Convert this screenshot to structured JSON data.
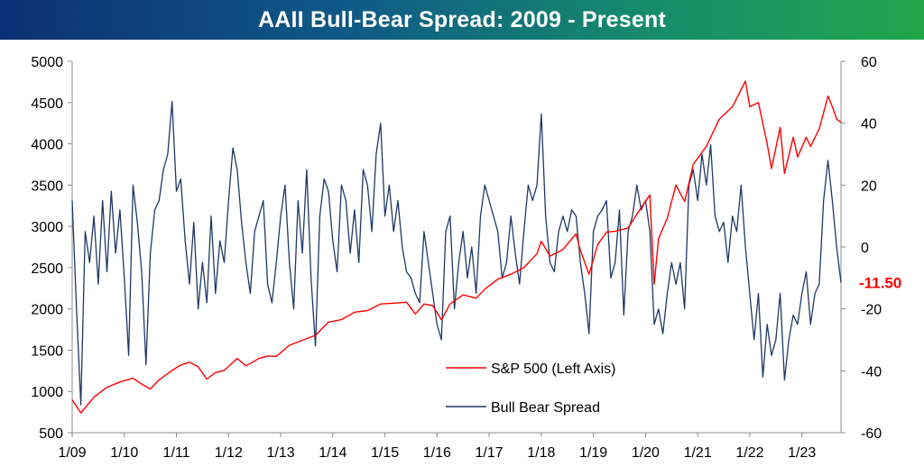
{
  "title": "AAII Bull-Bear Spread: 2009 - Present",
  "chart_data": {
    "type": "line",
    "title": "AAII Bull-Bear Spread: 2009 - Present",
    "x_start": "2009-01",
    "x_end": "2023-10",
    "x_tick_labels": [
      "1/09",
      "1/10",
      "1/11",
      "1/12",
      "1/13",
      "1/14",
      "1/15",
      "1/16",
      "1/17",
      "1/18",
      "1/19",
      "1/20",
      "1/21",
      "1/22",
      "1/23"
    ],
    "left_axis": {
      "min": 500,
      "max": 5000,
      "step": 500,
      "ticks": [
        "500",
        "1000",
        "1500",
        "2000",
        "2500",
        "3000",
        "3500",
        "4000",
        "4500",
        "5000"
      ]
    },
    "right_axis": {
      "min": -60,
      "max": 60,
      "step": 20,
      "ticks": [
        "-60",
        "-40",
        "-20",
        "0",
        "20",
        "40",
        "60"
      ]
    },
    "grid": false,
    "legend_position": "bottom-center",
    "last_value_label": "-11.50",
    "last_value_color": "#ff0000",
    "series": [
      {
        "name": "S&P 500 (Left Axis)",
        "axis": "left",
        "color": "#ff0000",
        "points": [
          [
            "2009-01",
            900
          ],
          [
            "2009-03",
            740
          ],
          [
            "2009-06",
            930
          ],
          [
            "2009-09",
            1050
          ],
          [
            "2009-12",
            1115
          ],
          [
            "2010-03",
            1160
          ],
          [
            "2010-05",
            1090
          ],
          [
            "2010-07",
            1030
          ],
          [
            "2010-09",
            1140
          ],
          [
            "2010-12",
            1255
          ],
          [
            "2011-02",
            1320
          ],
          [
            "2011-04",
            1355
          ],
          [
            "2011-06",
            1300
          ],
          [
            "2011-08",
            1150
          ],
          [
            "2011-10",
            1230
          ],
          [
            "2011-12",
            1255
          ],
          [
            "2012-03",
            1400
          ],
          [
            "2012-05",
            1310
          ],
          [
            "2012-08",
            1400
          ],
          [
            "2012-10",
            1430
          ],
          [
            "2012-12",
            1425
          ],
          [
            "2013-03",
            1560
          ],
          [
            "2013-06",
            1620
          ],
          [
            "2013-09",
            1680
          ],
          [
            "2013-12",
            1840
          ],
          [
            "2014-03",
            1870
          ],
          [
            "2014-06",
            1960
          ],
          [
            "2014-09",
            1980
          ],
          [
            "2014-12",
            2060
          ],
          [
            "2015-03",
            2070
          ],
          [
            "2015-06",
            2080
          ],
          [
            "2015-08",
            1940
          ],
          [
            "2015-10",
            2060
          ],
          [
            "2015-12",
            2040
          ],
          [
            "2016-02",
            1870
          ],
          [
            "2016-04",
            2060
          ],
          [
            "2016-07",
            2170
          ],
          [
            "2016-10",
            2130
          ],
          [
            "2016-12",
            2240
          ],
          [
            "2017-03",
            2360
          ],
          [
            "2017-06",
            2420
          ],
          [
            "2017-09",
            2500
          ],
          [
            "2017-12",
            2670
          ],
          [
            "2018-01",
            2820
          ],
          [
            "2018-03",
            2640
          ],
          [
            "2018-06",
            2720
          ],
          [
            "2018-09",
            2910
          ],
          [
            "2018-10",
            2710
          ],
          [
            "2018-12",
            2420
          ],
          [
            "2019-02",
            2780
          ],
          [
            "2019-04",
            2930
          ],
          [
            "2019-06",
            2940
          ],
          [
            "2019-09",
            2980
          ],
          [
            "2019-12",
            3230
          ],
          [
            "2020-02",
            3380
          ],
          [
            "2020-03",
            2300
          ],
          [
            "2020-04",
            2850
          ],
          [
            "2020-06",
            3100
          ],
          [
            "2020-08",
            3500
          ],
          [
            "2020-10",
            3300
          ],
          [
            "2020-12",
            3750
          ],
          [
            "2021-03",
            3970
          ],
          [
            "2021-06",
            4300
          ],
          [
            "2021-09",
            4450
          ],
          [
            "2021-12",
            4760
          ],
          [
            "2022-01",
            4450
          ],
          [
            "2022-03",
            4500
          ],
          [
            "2022-05",
            4000
          ],
          [
            "2022-06",
            3700
          ],
          [
            "2022-08",
            4200
          ],
          [
            "2022-09",
            3640
          ],
          [
            "2022-11",
            4080
          ],
          [
            "2022-12",
            3840
          ],
          [
            "2023-02",
            4080
          ],
          [
            "2023-03",
            3970
          ],
          [
            "2023-05",
            4180
          ],
          [
            "2023-07",
            4580
          ],
          [
            "2023-08",
            4450
          ],
          [
            "2023-09",
            4300
          ],
          [
            "2023-10",
            4260
          ]
        ]
      },
      {
        "name": "Bull Bear Spread",
        "axis": "right",
        "color": "#1f3864",
        "points": [
          [
            "2009-01",
            15
          ],
          [
            "2009-02",
            -20
          ],
          [
            "2009-03",
            -51
          ],
          [
            "2009-04",
            5
          ],
          [
            "2009-05",
            -5
          ],
          [
            "2009-06",
            10
          ],
          [
            "2009-07",
            -12
          ],
          [
            "2009-08",
            15
          ],
          [
            "2009-09",
            -8
          ],
          [
            "2009-10",
            18
          ],
          [
            "2009-11",
            -2
          ],
          [
            "2009-12",
            12
          ],
          [
            "2010-01",
            -10
          ],
          [
            "2010-02",
            -35
          ],
          [
            "2010-03",
            20
          ],
          [
            "2010-04",
            8
          ],
          [
            "2010-05",
            -8
          ],
          [
            "2010-06",
            -38
          ],
          [
            "2010-07",
            -2
          ],
          [
            "2010-08",
            12
          ],
          [
            "2010-09",
            15
          ],
          [
            "2010-10",
            25
          ],
          [
            "2010-11",
            30
          ],
          [
            "2010-12",
            47
          ],
          [
            "2011-01",
            18
          ],
          [
            "2011-02",
            22
          ],
          [
            "2011-03",
            2
          ],
          [
            "2011-04",
            -12
          ],
          [
            "2011-05",
            8
          ],
          [
            "2011-06",
            -20
          ],
          [
            "2011-07",
            -5
          ],
          [
            "2011-08",
            -18
          ],
          [
            "2011-09",
            10
          ],
          [
            "2011-10",
            -15
          ],
          [
            "2011-11",
            2
          ],
          [
            "2011-12",
            -5
          ],
          [
            "2012-01",
            15
          ],
          [
            "2012-02",
            32
          ],
          [
            "2012-03",
            25
          ],
          [
            "2012-04",
            8
          ],
          [
            "2012-05",
            -5
          ],
          [
            "2012-06",
            -15
          ],
          [
            "2012-07",
            5
          ],
          [
            "2012-08",
            10
          ],
          [
            "2012-09",
            15
          ],
          [
            "2012-10",
            -12
          ],
          [
            "2012-11",
            -18
          ],
          [
            "2012-12",
            -5
          ],
          [
            "2013-01",
            10
          ],
          [
            "2013-02",
            20
          ],
          [
            "2013-03",
            -5
          ],
          [
            "2013-04",
            -20
          ],
          [
            "2013-05",
            15
          ],
          [
            "2013-06",
            -2
          ],
          [
            "2013-07",
            25
          ],
          [
            "2013-08",
            -10
          ],
          [
            "2013-09",
            -32
          ],
          [
            "2013-10",
            10
          ],
          [
            "2013-11",
            22
          ],
          [
            "2013-12",
            18
          ],
          [
            "2014-01",
            2
          ],
          [
            "2014-02",
            -8
          ],
          [
            "2014-03",
            20
          ],
          [
            "2014-04",
            15
          ],
          [
            "2014-05",
            -2
          ],
          [
            "2014-06",
            12
          ],
          [
            "2014-07",
            -5
          ],
          [
            "2014-08",
            25
          ],
          [
            "2014-09",
            20
          ],
          [
            "2014-10",
            5
          ],
          [
            "2014-11",
            30
          ],
          [
            "2014-12",
            40
          ],
          [
            "2015-01",
            10
          ],
          [
            "2015-02",
            20
          ],
          [
            "2015-03",
            5
          ],
          [
            "2015-04",
            15
          ],
          [
            "2015-05",
            0
          ],
          [
            "2015-06",
            -8
          ],
          [
            "2015-07",
            -10
          ],
          [
            "2015-08",
            -15
          ],
          [
            "2015-09",
            -18
          ],
          [
            "2015-10",
            5
          ],
          [
            "2015-11",
            -5
          ],
          [
            "2015-12",
            -15
          ],
          [
            "2016-01",
            -25
          ],
          [
            "2016-02",
            -30
          ],
          [
            "2016-03",
            5
          ],
          [
            "2016-04",
            10
          ],
          [
            "2016-05",
            -20
          ],
          [
            "2016-06",
            -5
          ],
          [
            "2016-07",
            5
          ],
          [
            "2016-08",
            -10
          ],
          [
            "2016-09",
            0
          ],
          [
            "2016-10",
            -15
          ],
          [
            "2016-11",
            10
          ],
          [
            "2016-12",
            20
          ],
          [
            "2017-01",
            15
          ],
          [
            "2017-02",
            10
          ],
          [
            "2017-03",
            5
          ],
          [
            "2017-04",
            -10
          ],
          [
            "2017-05",
            -5
          ],
          [
            "2017-06",
            10
          ],
          [
            "2017-07",
            -2
          ],
          [
            "2017-08",
            -12
          ],
          [
            "2017-09",
            5
          ],
          [
            "2017-10",
            20
          ],
          [
            "2017-11",
            15
          ],
          [
            "2017-12",
            20
          ],
          [
            "2018-01",
            43
          ],
          [
            "2018-02",
            10
          ],
          [
            "2018-03",
            -5
          ],
          [
            "2018-04",
            -8
          ],
          [
            "2018-05",
            5
          ],
          [
            "2018-06",
            10
          ],
          [
            "2018-07",
            5
          ],
          [
            "2018-08",
            12
          ],
          [
            "2018-09",
            10
          ],
          [
            "2018-10",
            -5
          ],
          [
            "2018-11",
            -15
          ],
          [
            "2018-12",
            -28
          ],
          [
            "2019-01",
            5
          ],
          [
            "2019-02",
            10
          ],
          [
            "2019-03",
            12
          ],
          [
            "2019-04",
            15
          ],
          [
            "2019-05",
            -10
          ],
          [
            "2019-06",
            -5
          ],
          [
            "2019-07",
            12
          ],
          [
            "2019-08",
            -22
          ],
          [
            "2019-09",
            5
          ],
          [
            "2019-10",
            10
          ],
          [
            "2019-11",
            20
          ],
          [
            "2019-12",
            12
          ],
          [
            "2020-01",
            15
          ],
          [
            "2020-02",
            5
          ],
          [
            "2020-03",
            -25
          ],
          [
            "2020-04",
            -20
          ],
          [
            "2020-05",
            -28
          ],
          [
            "2020-06",
            -15
          ],
          [
            "2020-07",
            -5
          ],
          [
            "2020-08",
            -12
          ],
          [
            "2020-09",
            -5
          ],
          [
            "2020-10",
            -20
          ],
          [
            "2020-11",
            20
          ],
          [
            "2020-12",
            25
          ],
          [
            "2021-01",
            15
          ],
          [
            "2021-02",
            30
          ],
          [
            "2021-03",
            20
          ],
          [
            "2021-04",
            33
          ],
          [
            "2021-05",
            10
          ],
          [
            "2021-06",
            5
          ],
          [
            "2021-07",
            8
          ],
          [
            "2021-08",
            -5
          ],
          [
            "2021-09",
            10
          ],
          [
            "2021-10",
            5
          ],
          [
            "2021-11",
            20
          ],
          [
            "2021-12",
            0
          ],
          [
            "2022-01",
            -15
          ],
          [
            "2022-02",
            -30
          ],
          [
            "2022-03",
            -15
          ],
          [
            "2022-04",
            -42
          ],
          [
            "2022-05",
            -25
          ],
          [
            "2022-06",
            -35
          ],
          [
            "2022-07",
            -30
          ],
          [
            "2022-08",
            -15
          ],
          [
            "2022-09",
            -43
          ],
          [
            "2022-10",
            -30
          ],
          [
            "2022-11",
            -22
          ],
          [
            "2022-12",
            -25
          ],
          [
            "2023-01",
            -15
          ],
          [
            "2023-02",
            -8
          ],
          [
            "2023-03",
            -25
          ],
          [
            "2023-04",
            -15
          ],
          [
            "2023-05",
            -12
          ],
          [
            "2023-06",
            15
          ],
          [
            "2023-07",
            28
          ],
          [
            "2023-08",
            15
          ],
          [
            "2023-09",
            0
          ],
          [
            "2023-10",
            -11.5
          ]
        ]
      }
    ]
  }
}
